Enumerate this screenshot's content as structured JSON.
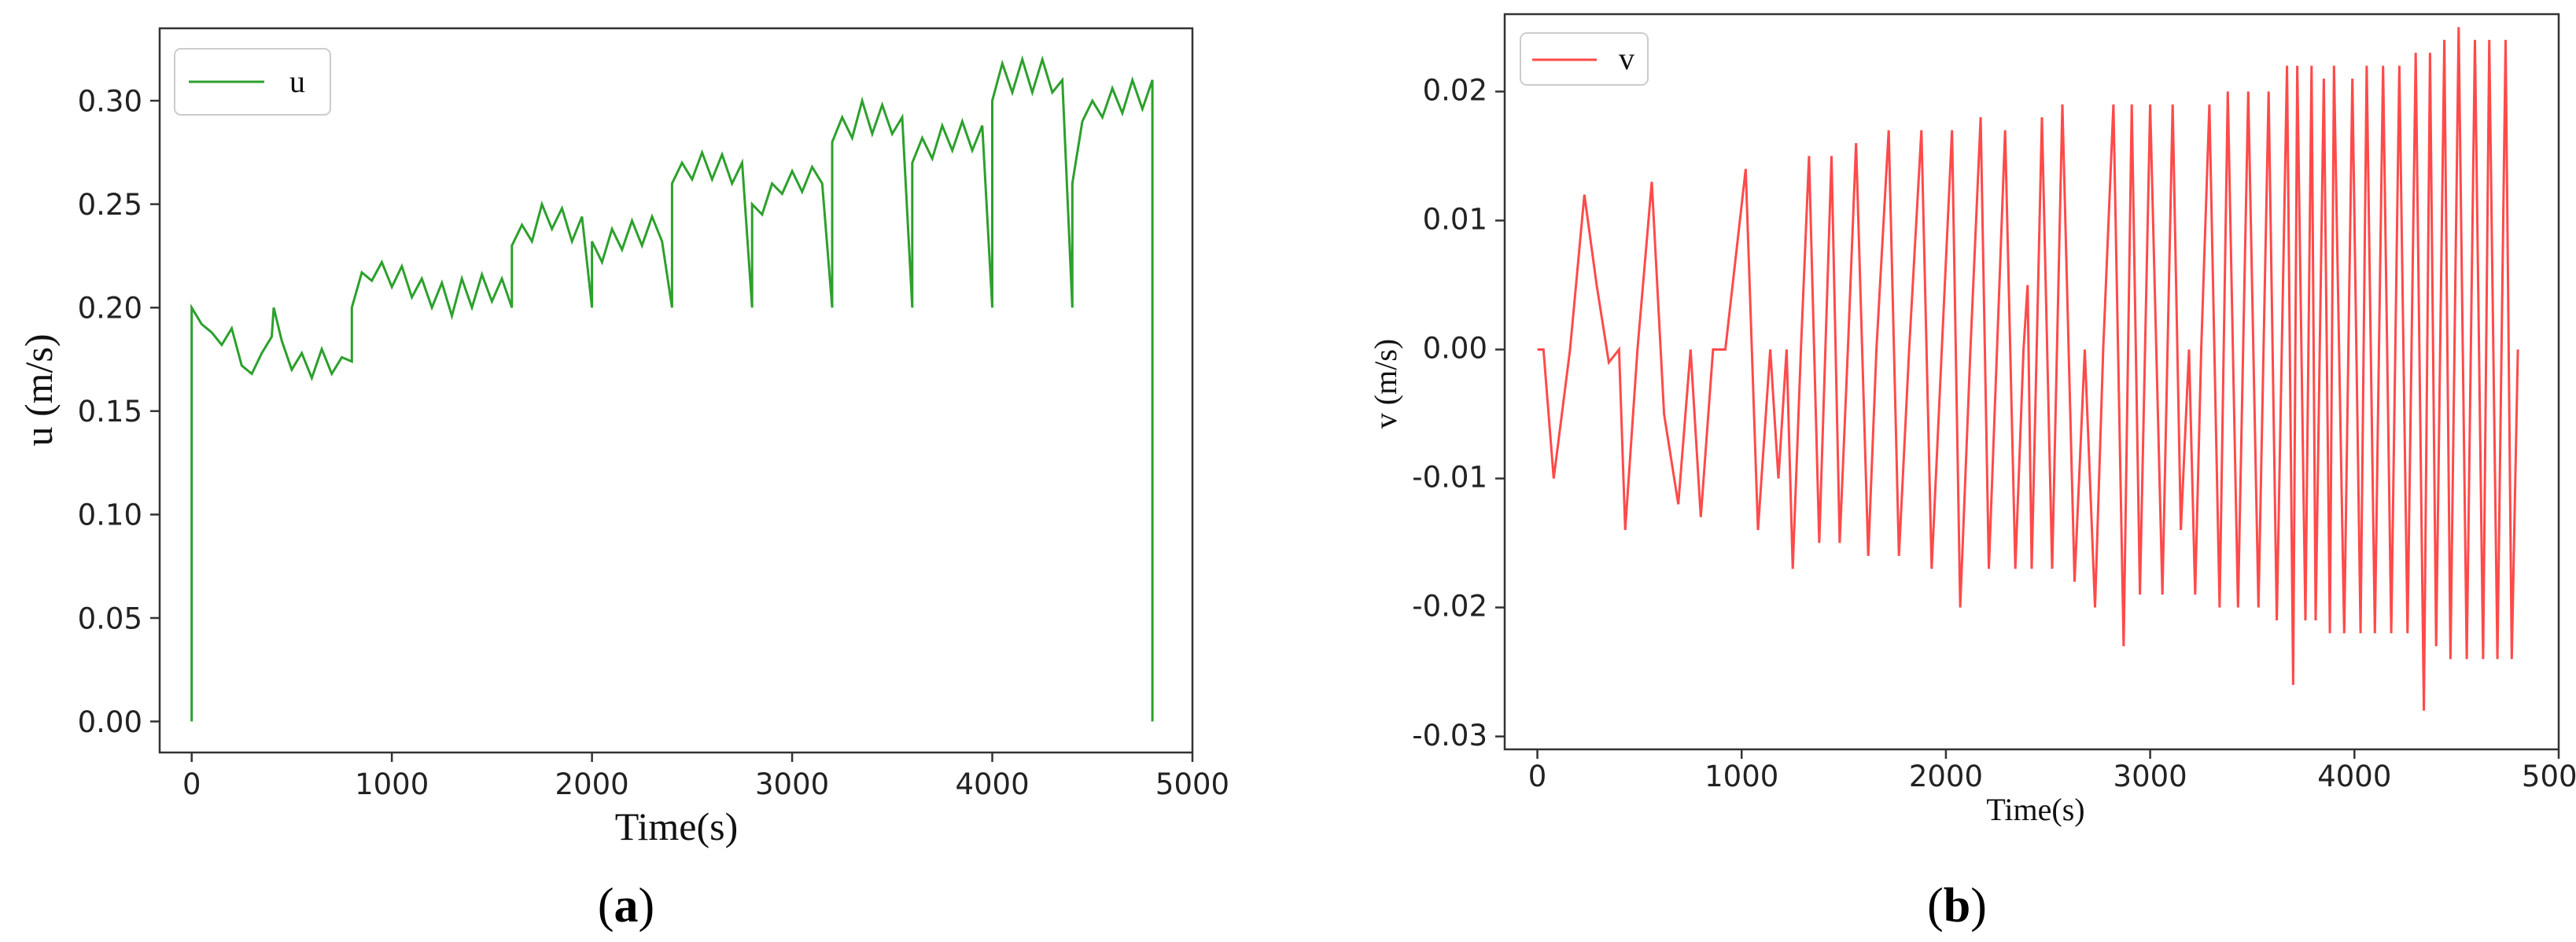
{
  "panels": {
    "a": {
      "label_open": "(",
      "label_letter": "a",
      "label_close": ")"
    },
    "b": {
      "label_open": "(",
      "label_letter": "b",
      "label_close": ")"
    }
  },
  "chart_data": [
    {
      "type": "line",
      "xlabel": "Time(s)",
      "ylabel": "u (m/s)",
      "xlim": [
        -160,
        5000
      ],
      "ylim": [
        -0.015,
        0.335
      ],
      "x_ticks": [
        0,
        1000,
        2000,
        3000,
        4000,
        5000
      ],
      "y_ticks": [
        0.0,
        0.05,
        0.1,
        0.15,
        0.2,
        0.25,
        0.3
      ],
      "y_tick_labels": [
        "0.00",
        "0.05",
        "0.10",
        "0.15",
        "0.20",
        "0.25",
        "0.30"
      ],
      "legend": "top-left",
      "grid": false,
      "color": "#2ca02c",
      "series": [
        {
          "name": "u",
          "x": [
            0,
            0,
            25,
            50,
            100,
            150,
            200,
            250,
            300,
            350,
            400,
            410,
            450,
            500,
            550,
            600,
            650,
            700,
            750,
            800,
            800,
            850,
            900,
            950,
            1000,
            1050,
            1100,
            1150,
            1200,
            1250,
            1300,
            1350,
            1400,
            1450,
            1500,
            1550,
            1600,
            1600,
            1650,
            1700,
            1750,
            1800,
            1850,
            1900,
            1950,
            2000,
            2000,
            2050,
            2100,
            2150,
            2200,
            2250,
            2300,
            2350,
            2400,
            2400,
            2450,
            2500,
            2550,
            2600,
            2650,
            2700,
            2750,
            2800,
            2800,
            2850,
            2900,
            2950,
            3000,
            3050,
            3100,
            3150,
            3200,
            3200,
            3250,
            3300,
            3350,
            3400,
            3450,
            3500,
            3550,
            3600,
            3600,
            3650,
            3700,
            3750,
            3800,
            3850,
            3900,
            3950,
            4000,
            4000,
            4050,
            4100,
            4150,
            4200,
            4250,
            4300,
            4350,
            4400,
            4400,
            4450,
            4500,
            4550,
            4600,
            4650,
            4700,
            4750,
            4800,
            4800
          ],
          "values": [
            0.0,
            0.2,
            0.196,
            0.192,
            0.188,
            0.182,
            0.19,
            0.172,
            0.168,
            0.178,
            0.186,
            0.2,
            0.184,
            0.17,
            0.178,
            0.166,
            0.18,
            0.168,
            0.176,
            0.174,
            0.2,
            0.217,
            0.213,
            0.222,
            0.21,
            0.22,
            0.205,
            0.214,
            0.2,
            0.212,
            0.196,
            0.214,
            0.2,
            0.216,
            0.203,
            0.214,
            0.2,
            0.23,
            0.24,
            0.232,
            0.25,
            0.238,
            0.248,
            0.232,
            0.244,
            0.2,
            0.232,
            0.222,
            0.238,
            0.228,
            0.242,
            0.23,
            0.244,
            0.232,
            0.2,
            0.26,
            0.27,
            0.262,
            0.275,
            0.262,
            0.274,
            0.26,
            0.27,
            0.2,
            0.25,
            0.245,
            0.26,
            0.255,
            0.266,
            0.256,
            0.268,
            0.26,
            0.2,
            0.28,
            0.292,
            0.282,
            0.3,
            0.284,
            0.298,
            0.284,
            0.292,
            0.2,
            0.27,
            0.282,
            0.272,
            0.288,
            0.276,
            0.29,
            0.276,
            0.288,
            0.2,
            0.3,
            0.318,
            0.304,
            0.32,
            0.304,
            0.32,
            0.304,
            0.31,
            0.2,
            0.26,
            0.29,
            0.3,
            0.292,
            0.306,
            0.294,
            0.31,
            0.296,
            0.31,
            0.0
          ]
        }
      ]
    },
    {
      "type": "line",
      "xlabel": "Time(s)",
      "ylabel": "v (m/s)",
      "xlim": [
        -160,
        5000
      ],
      "ylim": [
        -0.031,
        0.026
      ],
      "x_ticks": [
        0,
        1000,
        2000,
        3000,
        4000,
        5000
      ],
      "y_ticks": [
        -0.03,
        -0.02,
        -0.01,
        0.0,
        0.01,
        0.02
      ],
      "y_tick_labels": [
        "-0.03",
        "-0.02",
        "-0.01",
        "0.00",
        "0.01",
        "0.02"
      ],
      "legend": "top-left",
      "grid": false,
      "color": "#ff4a4a",
      "series": [
        {
          "name": "v",
          "x": [
            0,
            30,
            80,
            160,
            230,
            290,
            350,
            400,
            430,
            490,
            560,
            620,
            690,
            750,
            800,
            860,
            920,
            1020,
            1080,
            1140,
            1180,
            1220,
            1250,
            1290,
            1330,
            1380,
            1440,
            1480,
            1520,
            1560,
            1620,
            1660,
            1720,
            1770,
            1820,
            1880,
            1930,
            1980,
            2030,
            2070,
            2120,
            2170,
            2210,
            2250,
            2290,
            2340,
            2380,
            2400,
            2420,
            2470,
            2520,
            2570,
            2630,
            2680,
            2730,
            2770,
            2820,
            2870,
            2910,
            2950,
            3000,
            3060,
            3110,
            3150,
            3190,
            3220,
            3250,
            3290,
            3340,
            3380,
            3430,
            3480,
            3530,
            3580,
            3620,
            3670,
            3700,
            3720,
            3760,
            3790,
            3810,
            3850,
            3880,
            3900,
            3950,
            3990,
            4030,
            4060,
            4100,
            4140,
            4180,
            4220,
            4260,
            4300,
            4340,
            4370,
            4400,
            4440,
            4470,
            4510,
            4550,
            4590,
            4630,
            4660,
            4700,
            4740,
            4770,
            4800
          ],
          "values": [
            0.0,
            0.0,
            -0.01,
            0.0,
            0.012,
            0.005,
            -0.001,
            0.0,
            -0.014,
            0.0,
            0.013,
            -0.005,
            -0.012,
            0.0,
            -0.013,
            0.0,
            0.0,
            0.014,
            -0.014,
            0.0,
            -0.01,
            0.0,
            -0.017,
            0.0,
            0.015,
            -0.015,
            0.015,
            -0.015,
            0.0,
            0.016,
            -0.016,
            0.0,
            0.017,
            -0.016,
            0.0,
            0.017,
            -0.017,
            0.0,
            0.017,
            -0.02,
            0.0,
            0.018,
            -0.017,
            0.0,
            0.017,
            -0.017,
            0.0,
            0.005,
            -0.017,
            0.018,
            -0.017,
            0.019,
            -0.018,
            0.0,
            -0.02,
            0.0,
            0.019,
            -0.023,
            0.019,
            -0.019,
            0.019,
            -0.019,
            0.019,
            -0.014,
            0.0,
            -0.019,
            0.0,
            0.019,
            -0.02,
            0.02,
            -0.02,
            0.02,
            -0.02,
            0.02,
            -0.021,
            0.022,
            -0.026,
            0.022,
            -0.021,
            0.022,
            -0.021,
            0.021,
            -0.022,
            0.022,
            -0.022,
            0.021,
            -0.022,
            0.022,
            -0.022,
            0.022,
            -0.022,
            0.022,
            -0.022,
            0.023,
            -0.028,
            0.023,
            -0.023,
            0.024,
            -0.024,
            0.025,
            -0.024,
            0.024,
            -0.024,
            0.024,
            -0.024,
            0.024,
            -0.024,
            0.0
          ]
        }
      ]
    }
  ]
}
